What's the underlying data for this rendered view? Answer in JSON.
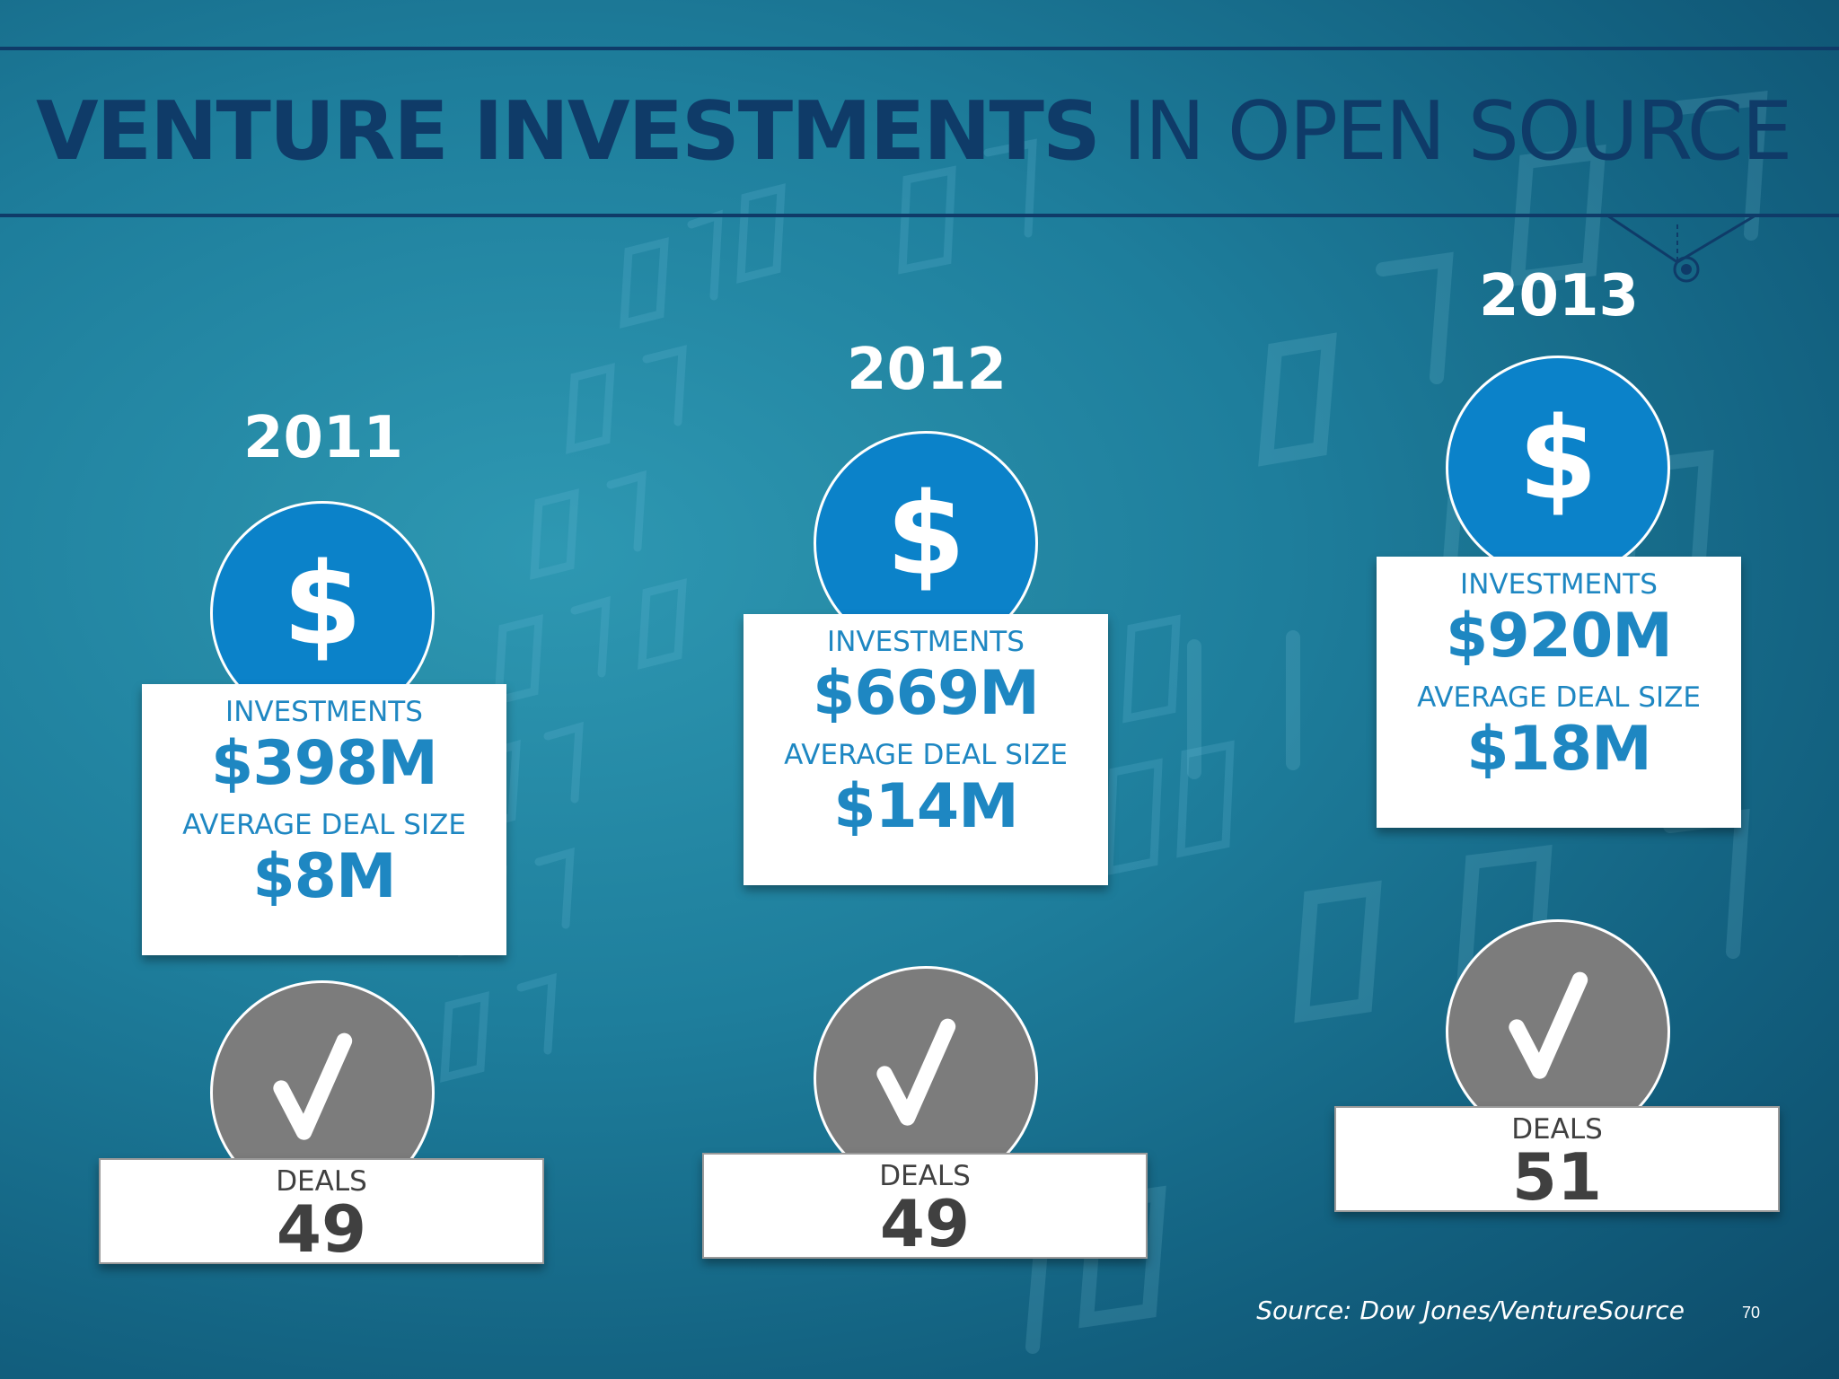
{
  "slide": {
    "title_bold": "VENTURE INVESTMENTS",
    "title_rest": " IN OPEN SOURCE",
    "source": "Source: Dow Jones/VentureSource",
    "page_number": "70"
  },
  "years": [
    {
      "year": "2011",
      "investments_label": "INVESTMENTS",
      "investments_value": "$398M",
      "avg_label": "AVERAGE DEAL SIZE",
      "avg_value": "$8M",
      "deals_label": "DEALS",
      "deals_value": "49"
    },
    {
      "year": "2012",
      "investments_label": "INVESTMENTS",
      "investments_value": "$669M",
      "avg_label": "AVERAGE DEAL SIZE",
      "avg_value": "$14M",
      "deals_label": "DEALS",
      "deals_value": "49"
    },
    {
      "year": "2013",
      "investments_label": "INVESTMENTS",
      "investments_value": "$920M",
      "avg_label": "AVERAGE DEAL SIZE",
      "avg_value": "$18M",
      "deals_label": "DEALS",
      "deals_value": "51"
    }
  ],
  "icons": {
    "investment": "dollar-icon",
    "deals": "checkmark-icon"
  },
  "colors": {
    "title": "#0f3b68",
    "accent_blue": "#0b82c9",
    "value_text": "#1e87c2",
    "deal_circle": "#7c7c7c",
    "deal_text": "#404040"
  }
}
